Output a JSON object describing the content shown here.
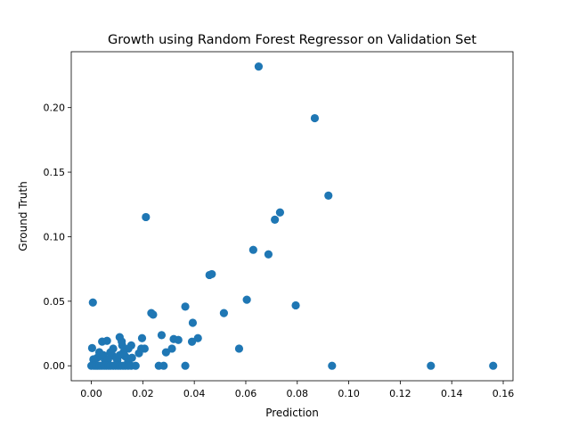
{
  "chart_data": {
    "type": "scatter",
    "title": "Growth using Random Forest Regressor on Validation Set",
    "xlabel": "Prediction",
    "ylabel": "Ground Truth",
    "xlim": [
      -0.0078,
      0.1638
    ],
    "ylim": [
      -0.0116,
      0.2433
    ],
    "xticks": [
      0.0,
      0.02,
      0.04,
      0.06,
      0.08,
      0.1,
      0.12,
      0.14,
      0.16
    ],
    "xtick_labels": [
      "0.00",
      "0.02",
      "0.04",
      "0.06",
      "0.08",
      "0.10",
      "0.12",
      "0.14",
      "0.16"
    ],
    "yticks": [
      0.0,
      0.05,
      0.1,
      0.15,
      0.2
    ],
    "ytick_labels": [
      "0.00",
      "0.05",
      "0.10",
      "0.15",
      "0.20"
    ],
    "grid": false,
    "marker_color": "#1f77b4",
    "points": [
      [
        0.065,
        0.2318
      ],
      [
        0.0868,
        0.1918
      ],
      [
        0.0921,
        0.1318
      ],
      [
        0.0733,
        0.1188
      ],
      [
        0.0713,
        0.1132
      ],
      [
        0.0212,
        0.1152
      ],
      [
        0.0629,
        0.0898
      ],
      [
        0.0688,
        0.0863
      ],
      [
        0.0459,
        0.0703
      ],
      [
        0.0468,
        0.071
      ],
      [
        0.0604,
        0.0512
      ],
      [
        0.0794,
        0.0468
      ],
      [
        0.0515,
        0.0408
      ],
      [
        0.0365,
        0.0458
      ],
      [
        0.0394,
        0.0333
      ],
      [
        0.0233,
        0.0408
      ],
      [
        0.024,
        0.0396
      ],
      [
        0.0006,
        0.049
      ],
      [
        0.0273,
        0.0237
      ],
      [
        0.032,
        0.0207
      ],
      [
        0.0338,
        0.02
      ],
      [
        0.0414,
        0.0214
      ],
      [
        0.0391,
        0.0186
      ],
      [
        0.0574,
        0.0133
      ],
      [
        0.0313,
        0.0133
      ],
      [
        0.029,
        0.0104
      ],
      [
        0.0197,
        0.0214
      ],
      [
        0.0194,
        0.0133
      ],
      [
        0.0207,
        0.0133
      ],
      [
        0.0185,
        0.0097
      ],
      [
        0.0155,
        0.0158
      ],
      [
        0.0144,
        0.0133
      ],
      [
        0.012,
        0.0158
      ],
      [
        0.011,
        0.0222
      ],
      [
        0.0118,
        0.0188
      ],
      [
        0.0085,
        0.0133
      ],
      [
        0.0061,
        0.0193
      ],
      [
        0.0042,
        0.0187
      ],
      [
        0.0003,
        0.0137
      ],
      [
        0.0023,
        0.0062
      ],
      [
        0.0052,
        0.005
      ],
      [
        0.0081,
        0.0082
      ],
      [
        0.0101,
        0.0042
      ],
      [
        0.0132,
        0.0072
      ],
      [
        0.0143,
        0.0032
      ],
      [
        0.0158,
        0.0062
      ],
      [
        0.0008,
        0.005
      ],
      [
        0.001,
        0.002
      ],
      [
        0.0031,
        0.0105
      ],
      [
        0.0057,
        0.0032
      ],
      [
        0.0074,
        0.0104
      ],
      [
        0.0096,
        0.0062
      ],
      [
        0.0125,
        0.0104
      ],
      [
        0.0047,
        0.0082
      ],
      [
        0.0065,
        0.005
      ],
      [
        0.011,
        0.0082
      ],
      [
        0.0,
        0.0
      ],
      [
        0.001,
        0.0
      ],
      [
        0.0018,
        0.0
      ],
      [
        0.0025,
        0.0
      ],
      [
        0.0033,
        0.0
      ],
      [
        0.0041,
        0.0
      ],
      [
        0.005,
        0.0
      ],
      [
        0.0058,
        0.0
      ],
      [
        0.0067,
        0.0
      ],
      [
        0.0075,
        0.0
      ],
      [
        0.0085,
        0.0
      ],
      [
        0.0094,
        0.0
      ],
      [
        0.0104,
        0.0
      ],
      [
        0.0113,
        0.0
      ],
      [
        0.0123,
        0.0
      ],
      [
        0.0132,
        0.0
      ],
      [
        0.0143,
        0.0
      ],
      [
        0.0155,
        0.0
      ],
      [
        0.0172,
        0.0
      ],
      [
        0.0262,
        0.0
      ],
      [
        0.0281,
        0.0
      ],
      [
        0.0365,
        0.0
      ],
      [
        0.0935,
        0.0
      ],
      [
        0.1319,
        0.0
      ],
      [
        0.1561,
        0.0
      ]
    ]
  }
}
